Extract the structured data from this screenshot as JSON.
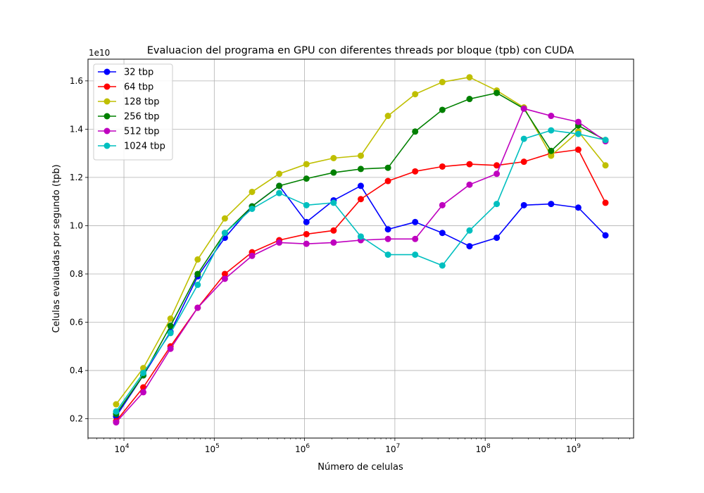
{
  "chart_data": {
    "type": "line",
    "title": "Evaluacion del programa en GPU con diferentes threads por bloque (tpb) con CUDA",
    "xlabel": "Número de celulas",
    "ylabel": "Celulas evaluadas por segundo (tpb)",
    "y_offset_text": "1e10",
    "xscale": "log",
    "xlim": [
      4000,
      4400000000
    ],
    "ylim": [
      0.12,
      1.69
    ],
    "y_multiplier": 10000000000,
    "x_ticks": [
      {
        "value": 10000,
        "base": "10",
        "exp": "4"
      },
      {
        "value": 100000,
        "base": "10",
        "exp": "5"
      },
      {
        "value": 1000000,
        "base": "10",
        "exp": "6"
      },
      {
        "value": 10000000,
        "base": "10",
        "exp": "7"
      },
      {
        "value": 100000000,
        "base": "10",
        "exp": "8"
      },
      {
        "value": 1000000000,
        "base": "10",
        "exp": "9"
      }
    ],
    "y_ticks": [
      {
        "value": 0.2,
        "label": "0.2"
      },
      {
        "value": 0.4,
        "label": "0.4"
      },
      {
        "value": 0.6,
        "label": "0.6"
      },
      {
        "value": 0.8,
        "label": "0.8"
      },
      {
        "value": 1.0,
        "label": "1.0"
      },
      {
        "value": 1.2,
        "label": "1.2"
      },
      {
        "value": 1.4,
        "label": "1.4"
      },
      {
        "value": 1.6,
        "label": "1.6"
      }
    ],
    "grid": true,
    "legend_position": "top-left",
    "x": [
      8192,
      16384,
      32768,
      65536,
      131072,
      262144,
      524288,
      1048576,
      2097152,
      4194304,
      8388608,
      16777216,
      33554432,
      67108864,
      134217728,
      268435456,
      536870912,
      1073741824,
      2147483648
    ],
    "series": [
      {
        "name": "32 tbp",
        "color": "#0000ff",
        "values": [
          0.21,
          0.38,
          0.56,
          0.79,
          0.95,
          1.08,
          1.165,
          1.015,
          1.105,
          1.165,
          0.985,
          1.015,
          0.97,
          0.915,
          0.95,
          1.085,
          1.09,
          1.075,
          0.96
        ]
      },
      {
        "name": "64 tbp",
        "color": "#ff0000",
        "values": [
          0.19,
          0.33,
          0.5,
          0.66,
          0.8,
          0.89,
          0.94,
          0.965,
          0.98,
          1.11,
          1.185,
          1.225,
          1.245,
          1.255,
          1.25,
          1.265,
          1.3,
          1.315,
          1.095
        ]
      },
      {
        "name": "128 tbp",
        "color": "#bfbf00",
        "values": [
          0.26,
          0.41,
          0.615,
          0.86,
          1.03,
          1.14,
          1.215,
          1.255,
          1.28,
          1.29,
          1.455,
          1.545,
          1.595,
          1.615,
          1.56,
          1.49,
          1.29,
          1.39,
          1.25
        ]
      },
      {
        "name": "256 tbp",
        "color": "#008000",
        "values": [
          0.22,
          0.38,
          0.585,
          0.8,
          0.97,
          1.08,
          1.165,
          1.195,
          1.22,
          1.235,
          1.24,
          1.39,
          1.48,
          1.525,
          1.55,
          1.485,
          1.31,
          1.415,
          1.355
        ]
      },
      {
        "name": "512 tbp",
        "color": "#bf00bf",
        "values": [
          0.185,
          0.31,
          0.49,
          0.66,
          0.78,
          0.875,
          0.93,
          0.925,
          0.93,
          0.94,
          0.945,
          0.945,
          1.085,
          1.17,
          1.215,
          1.485,
          1.455,
          1.43,
          1.35
        ]
      },
      {
        "name": "1024 tbp",
        "color": "#00bfbf",
        "values": [
          0.23,
          0.39,
          0.555,
          0.755,
          0.97,
          1.07,
          1.135,
          1.085,
          1.095,
          0.955,
          0.88,
          0.88,
          0.835,
          0.98,
          1.09,
          1.36,
          1.395,
          1.38,
          1.355
        ]
      }
    ]
  }
}
